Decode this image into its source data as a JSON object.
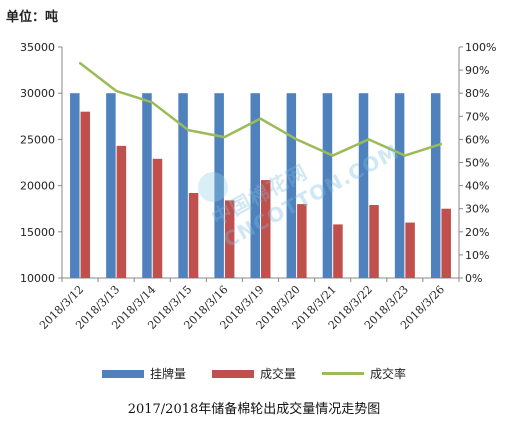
{
  "unit_label": "单位：吨",
  "caption": "2017/2018年储备棉轮出成交量情况走势图",
  "watermark": "中国棉花网 CNCOTTON.COM",
  "colors": {
    "bar1": "#4F81BD",
    "bar2": "#C0504D",
    "line": "#9BBB59",
    "axis": "#888888"
  },
  "chart_data": {
    "type": "bar",
    "categories": [
      "2018/3/12",
      "2018/3/13",
      "2018/3/14",
      "2018/3/15",
      "2018/3/16",
      "2018/3/19",
      "2018/3/20",
      "2018/3/21",
      "2018/3/22",
      "2018/3/23",
      "2018/3/26"
    ],
    "series": [
      {
        "name": "挂牌量",
        "type": "bar",
        "axis": "left",
        "values": [
          30000,
          30000,
          30000,
          30000,
          30000,
          30000,
          30000,
          30000,
          30000,
          30000,
          30000
        ]
      },
      {
        "name": "成交量",
        "type": "bar",
        "axis": "left",
        "values": [
          28000,
          24300,
          22900,
          19200,
          18400,
          20600,
          18000,
          15800,
          17900,
          16000,
          17500
        ]
      },
      {
        "name": "成交率",
        "type": "line",
        "axis": "right",
        "values": [
          0.93,
          0.81,
          0.76,
          0.64,
          0.61,
          0.69,
          0.6,
          0.53,
          0.6,
          0.53,
          0.58
        ]
      }
    ],
    "ylim": [
      10000,
      35000
    ],
    "yticks": [
      10000,
      15000,
      20000,
      25000,
      30000,
      35000
    ],
    "y2lim": [
      0,
      1
    ],
    "y2ticks": [
      "0%",
      "10%",
      "20%",
      "30%",
      "40%",
      "50%",
      "60%",
      "70%",
      "80%",
      "90%",
      "100%"
    ],
    "legend": [
      "挂牌量",
      "成交量",
      "成交率"
    ],
    "legend_position": "bottom",
    "grid": false
  }
}
